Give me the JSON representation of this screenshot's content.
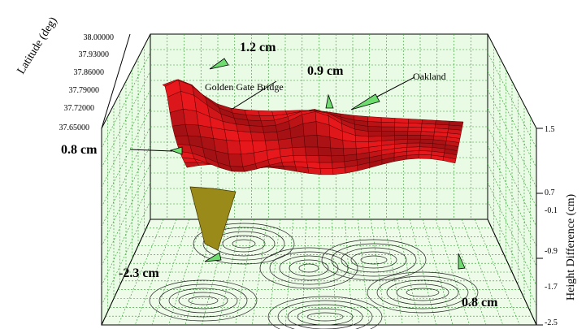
{
  "chart_data": {
    "type": "surface",
    "title": "",
    "ylabel": "Latitude (deg)",
    "zlabel": "Height Difference (cm)",
    "latitude_ticks": [
      "38.00000",
      "37.93000",
      "37.86000",
      "37.79000",
      "37.72000",
      "37.65000"
    ],
    "height_ticks": [
      "1.5",
      "0.7",
      "-0.1",
      "-0.9",
      "-1.7",
      "-2.5"
    ],
    "zlim": [
      -2.5,
      1.5
    ],
    "ylim": [
      37.65,
      38.0
    ],
    "grid": true,
    "surface_color": "#e8181c",
    "min_region_color": "#9a8a1a",
    "annotations": [
      {
        "id": "ann-12",
        "text": "1.2 cm"
      },
      {
        "id": "ann-09",
        "text": "0.9 cm"
      },
      {
        "id": "ann-oakland",
        "text": "Oakland"
      },
      {
        "id": "ann-ggb",
        "text": "Golden Gate Bridge"
      },
      {
        "id": "ann-08-left",
        "text": "0.8 cm"
      },
      {
        "id": "ann-23",
        "text": "-2.3 cm"
      },
      {
        "id": "ann-08-right",
        "text": "0.8 cm"
      }
    ],
    "series": [
      {
        "label_ref": "ann-12",
        "value": 1.2
      },
      {
        "label_ref": "ann-09",
        "value": 0.9
      },
      {
        "label_ref": "ann-08-left",
        "value": 0.8
      },
      {
        "label_ref": "ann-23",
        "value": -2.3
      },
      {
        "label_ref": "ann-08-right",
        "value": 0.8
      }
    ]
  }
}
